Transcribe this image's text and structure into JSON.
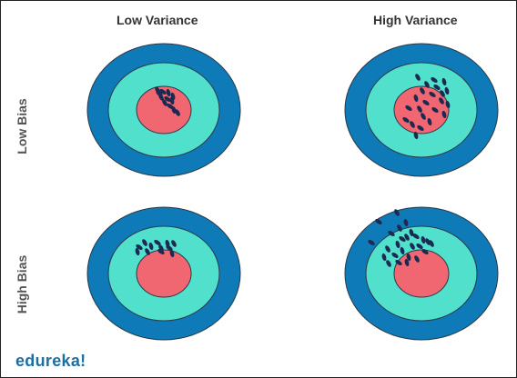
{
  "columns": {
    "left": "Low Variance",
    "right": "High Variance"
  },
  "rows": {
    "top": "Low Bias",
    "bottom": "High Bias"
  },
  "logo": {
    "text": "edureka!"
  },
  "colors": {
    "outer_ring": "#0e7ab8",
    "middle_ring": "#50e0cc",
    "bullseye": "#f06671",
    "hit": "#1c2a52",
    "ring_stroke": "#2a3a4a"
  }
}
